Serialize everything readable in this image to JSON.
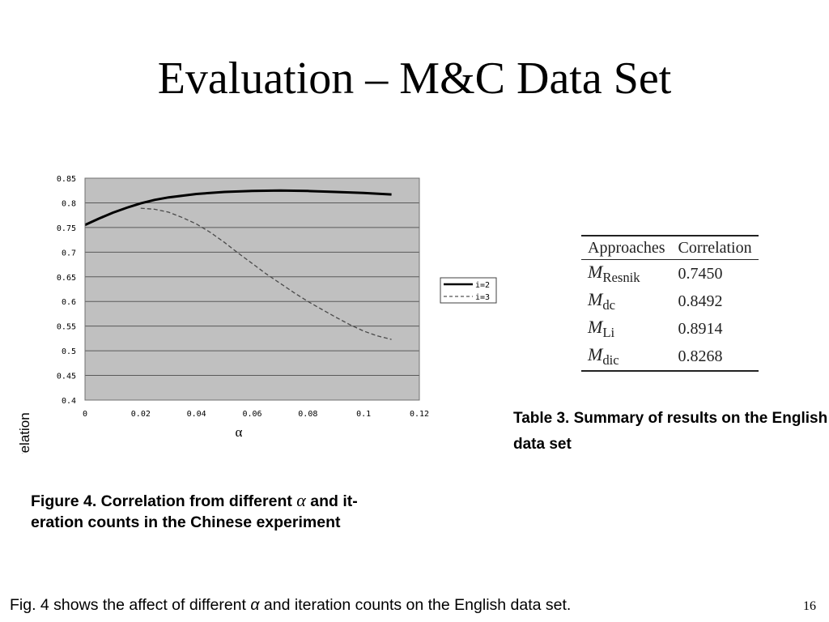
{
  "slide": {
    "title": "Evaluation – M&C Data Set",
    "page_number": "16"
  },
  "figure": {
    "caption_before": "Figure 4. Correlation from different",
    "caption_symbol": "α",
    "caption_after": "and it-",
    "caption_line2": "eration counts in the Chinese experiment"
  },
  "chart_data": {
    "type": "line",
    "ylabel": "correlation",
    "xlabel": "α",
    "xlim": [
      0,
      0.12
    ],
    "ylim": [
      0.4,
      0.85
    ],
    "x_ticks": [
      "0",
      "0.02",
      "0.04",
      "0.06",
      "0.08",
      "0.1",
      "0.12"
    ],
    "y_ticks": [
      "0.85",
      "0.8",
      "0.75",
      "0.7",
      "0.65",
      "0.6",
      "0.55",
      "0.5",
      "0.45",
      "0.4"
    ],
    "grid": "horizontal",
    "plot_background": "#c0c0c0",
    "legend_position": "right",
    "series": [
      {
        "name": "i=2",
        "style": "solid",
        "x": [
          0,
          0.005,
          0.01,
          0.015,
          0.02,
          0.025,
          0.03,
          0.04,
          0.05,
          0.06,
          0.07,
          0.08,
          0.09,
          0.1,
          0.11
        ],
        "y": [
          0.755,
          0.768,
          0.78,
          0.79,
          0.799,
          0.806,
          0.811,
          0.818,
          0.822,
          0.824,
          0.825,
          0.824,
          0.822,
          0.82,
          0.817
        ]
      },
      {
        "name": "i=3",
        "style": "dashed",
        "x": [
          0.02,
          0.025,
          0.03,
          0.035,
          0.04,
          0.045,
          0.05,
          0.055,
          0.06,
          0.065,
          0.07,
          0.075,
          0.08,
          0.085,
          0.09,
          0.095,
          0.1,
          0.105,
          0.11
        ],
        "y": [
          0.789,
          0.787,
          0.781,
          0.77,
          0.757,
          0.74,
          0.72,
          0.698,
          0.677,
          0.656,
          0.637,
          0.618,
          0.6,
          0.584,
          0.568,
          0.553,
          0.54,
          0.53,
          0.523
        ]
      }
    ]
  },
  "table": {
    "headers": [
      "Approaches",
      "Correlation"
    ],
    "rows": [
      {
        "m": "M",
        "sub": "Resnik",
        "value": "0.7450"
      },
      {
        "m": "M",
        "sub": "dc",
        "value": "0.8492"
      },
      {
        "m": "M",
        "sub": "Li",
        "value": "0.8914"
      },
      {
        "m": "M",
        "sub": "dic",
        "value": "0.8268"
      }
    ],
    "caption_line1": "Table 3. Summary of results on the English",
    "caption_line2": "data set"
  },
  "footer": {
    "before": "Fig. 4 shows the affect of different",
    "symbol": "α",
    "after": "and iteration counts on the English data set."
  }
}
